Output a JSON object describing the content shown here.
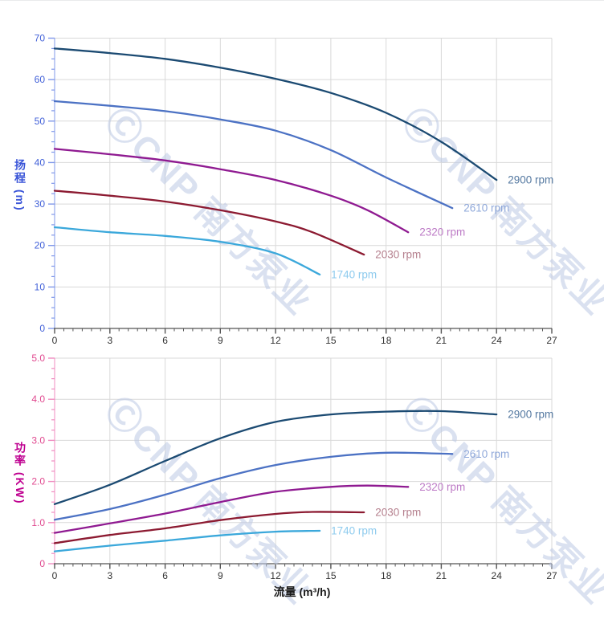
{
  "page": {
    "watermark_text": "ⒸCNP 南方泵业",
    "watermark_color": "#bcc9e4",
    "grid_color": "#d9d9d9",
    "x_axis_color": "#555555",
    "x_tick_label_color": "#333333"
  },
  "chart_data": [
    {
      "type": "line",
      "id": "head-curve-chart",
      "title": "",
      "ylabel": "扬程 (m)",
      "xlabel": "",
      "xlim": [
        0,
        27
      ],
      "ylim": [
        0,
        70
      ],
      "xticks": [
        0,
        3,
        6,
        9,
        12,
        15,
        18,
        21,
        24,
        27
      ],
      "yticks": [
        0,
        10,
        20,
        30,
        40,
        50,
        60,
        70
      ],
      "ytick_labels": [
        "0",
        "10",
        "20",
        "30",
        "40",
        "50",
        "60",
        "70"
      ],
      "x_minor_step": 0.5,
      "y_minor_step": 2.5,
      "grid": true,
      "legend_position": "end-of-curve",
      "axis_color": "#8098ea",
      "tick_label_color": "#4160d8",
      "series": [
        {
          "name": "2900 rpm",
          "color": "#1b4a72",
          "label_color": "#5579a1",
          "x": [
            0,
            3,
            6,
            9,
            12,
            15,
            18,
            21,
            24
          ],
          "y": [
            67.5,
            66.4,
            65.0,
            62.9,
            60.2,
            56.8,
            52.0,
            45.0,
            35.8
          ]
        },
        {
          "name": "2610 rpm",
          "color": "#4c72c4",
          "label_color": "#8fa8da",
          "x": [
            0,
            3,
            6,
            9,
            12,
            15,
            18,
            21.6
          ],
          "y": [
            54.8,
            53.7,
            52.4,
            50.4,
            47.7,
            43.0,
            36.4,
            29.0
          ]
        },
        {
          "name": "2320 rpm",
          "color": "#8f1a91",
          "label_color": "#bd7bc6",
          "x": [
            0,
            3,
            6,
            9,
            12,
            15,
            17,
            19.2
          ],
          "y": [
            43.3,
            42.0,
            40.5,
            38.4,
            35.8,
            32.0,
            28.5,
            23.2
          ]
        },
        {
          "name": "2030 rpm",
          "color": "#8c1a31",
          "label_color": "#b5808e",
          "x": [
            0,
            3,
            6,
            9,
            12,
            14,
            16.8
          ],
          "y": [
            33.2,
            32.0,
            30.6,
            28.5,
            25.8,
            23.2,
            17.8
          ]
        },
        {
          "name": "1740 rpm",
          "color": "#3ba8db",
          "label_color": "#8ecbee",
          "x": [
            0,
            3,
            6,
            9,
            12,
            14.4
          ],
          "y": [
            24.4,
            23.2,
            22.3,
            20.9,
            18.1,
            13.0
          ]
        }
      ]
    },
    {
      "type": "line",
      "id": "power-curve-chart",
      "title": "",
      "ylabel": "功率 (KW)",
      "xlabel": "流量 (m³/h)",
      "xlim": [
        0,
        27
      ],
      "ylim": [
        0,
        5
      ],
      "xticks": [
        0,
        3,
        6,
        9,
        12,
        15,
        18,
        21,
        24,
        27
      ],
      "yticks": [
        0,
        1,
        2,
        3,
        4,
        5
      ],
      "ytick_labels": [
        "0",
        "1.0",
        "2.0",
        "3.0",
        "4.0",
        "5.0"
      ],
      "x_minor_step": 0.5,
      "y_minor_step": 0.25,
      "grid": true,
      "legend_position": "end-of-curve",
      "axis_color": "#f08cc0",
      "tick_label_color": "#e0498f",
      "series": [
        {
          "name": "2900 rpm",
          "color": "#1b4a72",
          "label_color": "#5579a1",
          "x": [
            0,
            3,
            6,
            9,
            12,
            15,
            18,
            21,
            24
          ],
          "y": [
            1.45,
            1.92,
            2.5,
            3.05,
            3.45,
            3.63,
            3.7,
            3.71,
            3.63
          ]
        },
        {
          "name": "2610 rpm",
          "color": "#4c72c4",
          "label_color": "#8fa8da",
          "x": [
            0,
            3,
            6,
            9,
            12,
            15,
            18,
            21.6
          ],
          "y": [
            1.07,
            1.33,
            1.68,
            2.08,
            2.4,
            2.6,
            2.7,
            2.67
          ]
        },
        {
          "name": "2320 rpm",
          "color": "#8f1a91",
          "label_color": "#bd7bc6",
          "x": [
            0,
            3,
            6,
            9,
            12,
            15,
            17,
            19.2
          ],
          "y": [
            0.75,
            0.98,
            1.22,
            1.5,
            1.75,
            1.87,
            1.9,
            1.87
          ]
        },
        {
          "name": "2030 rpm",
          "color": "#8c1a31",
          "label_color": "#b5808e",
          "x": [
            0,
            3,
            6,
            9,
            12,
            14,
            16.8
          ],
          "y": [
            0.5,
            0.7,
            0.86,
            1.06,
            1.21,
            1.26,
            1.25
          ]
        },
        {
          "name": "1740 rpm",
          "color": "#3ba8db",
          "label_color": "#8ecbee",
          "x": [
            0,
            3,
            6,
            9,
            12,
            14.4
          ],
          "y": [
            0.3,
            0.44,
            0.56,
            0.69,
            0.78,
            0.8
          ]
        }
      ]
    }
  ]
}
